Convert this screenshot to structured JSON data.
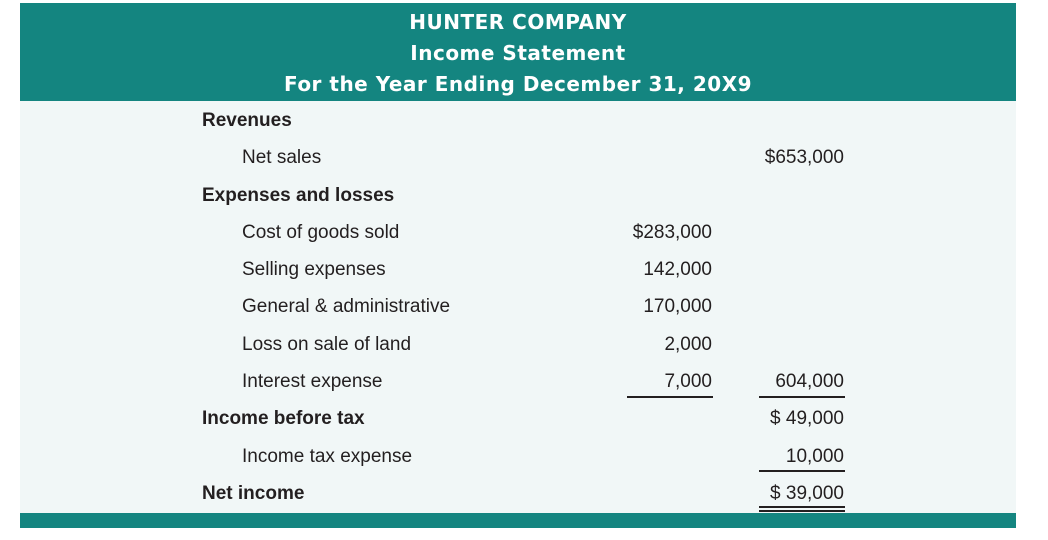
{
  "header": {
    "company": "HUNTER COMPANY",
    "statement": "Income Statement",
    "period": "For the Year Ending December 31, 20X9"
  },
  "lines": {
    "revenues": {
      "label": "Revenues"
    },
    "net_sales": {
      "label": "Net sales",
      "total": "$653,000"
    },
    "expenses_and_losses": {
      "label": "Expenses and losses"
    },
    "cost_of_goods_sold": {
      "label": "Cost of goods sold",
      "amount": "$283,000"
    },
    "selling_expenses": {
      "label": "Selling expenses",
      "amount": "142,000"
    },
    "general_admin": {
      "label": "General & administrative",
      "amount": "170,000"
    },
    "loss_on_sale_of_land": {
      "label": "Loss on sale of land",
      "amount": "2,000"
    },
    "interest_expense": {
      "label": "Interest expense",
      "amount": "7,000",
      "total": "604,000"
    },
    "income_before_tax": {
      "label": "Income before tax",
      "total": "$ 49,000"
    },
    "income_tax_expense": {
      "label": "Income tax expense",
      "total": "10,000"
    },
    "net_income": {
      "label": "Net income",
      "total": "$ 39,000"
    }
  },
  "colors": {
    "header_band": "#148580",
    "body_background": "#f1f7f7",
    "text": "#231f20"
  }
}
